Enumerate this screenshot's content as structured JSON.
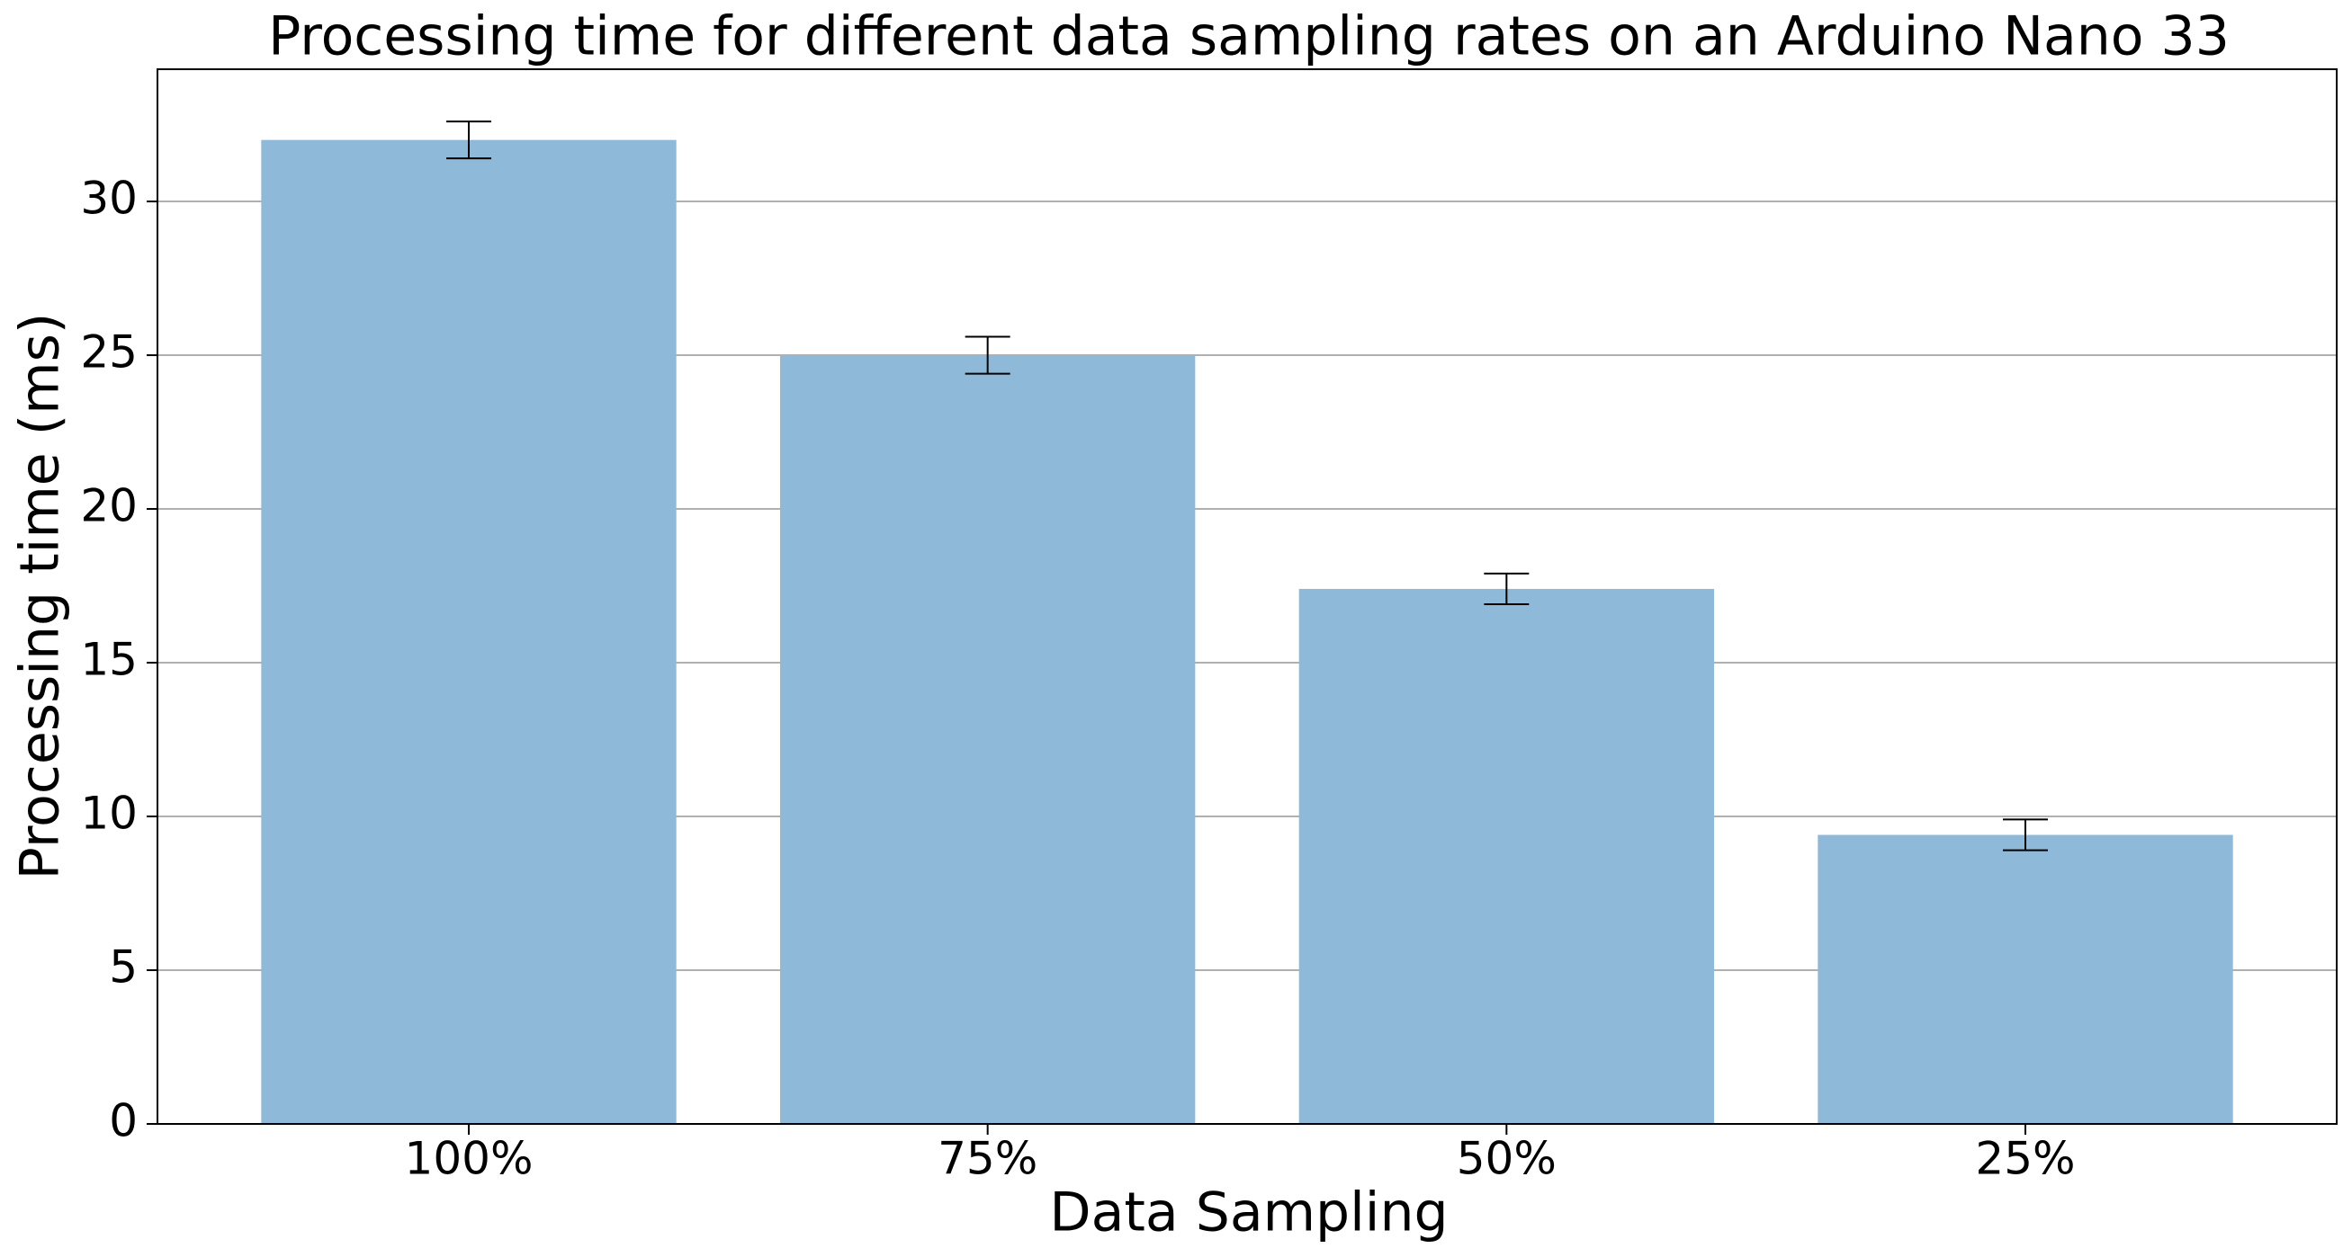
{
  "chart_data": {
    "type": "bar",
    "title": "Processing time for different data sampling rates on an Arduino Nano 33",
    "x_label": "Data Sampling",
    "y_label": "Processing time (ms)",
    "categories": [
      "100%",
      "75%",
      "50%",
      "25%"
    ],
    "values": [
      32.0,
      25.0,
      17.4,
      9.4
    ],
    "errors": [
      0.6,
      0.6,
      0.5,
      0.5
    ],
    "color": "#8fb9d9",
    "ylim": [
      0,
      34.3
    ],
    "yticks": [
      0,
      5,
      10,
      15,
      20,
      25,
      30
    ],
    "grid": true
  }
}
